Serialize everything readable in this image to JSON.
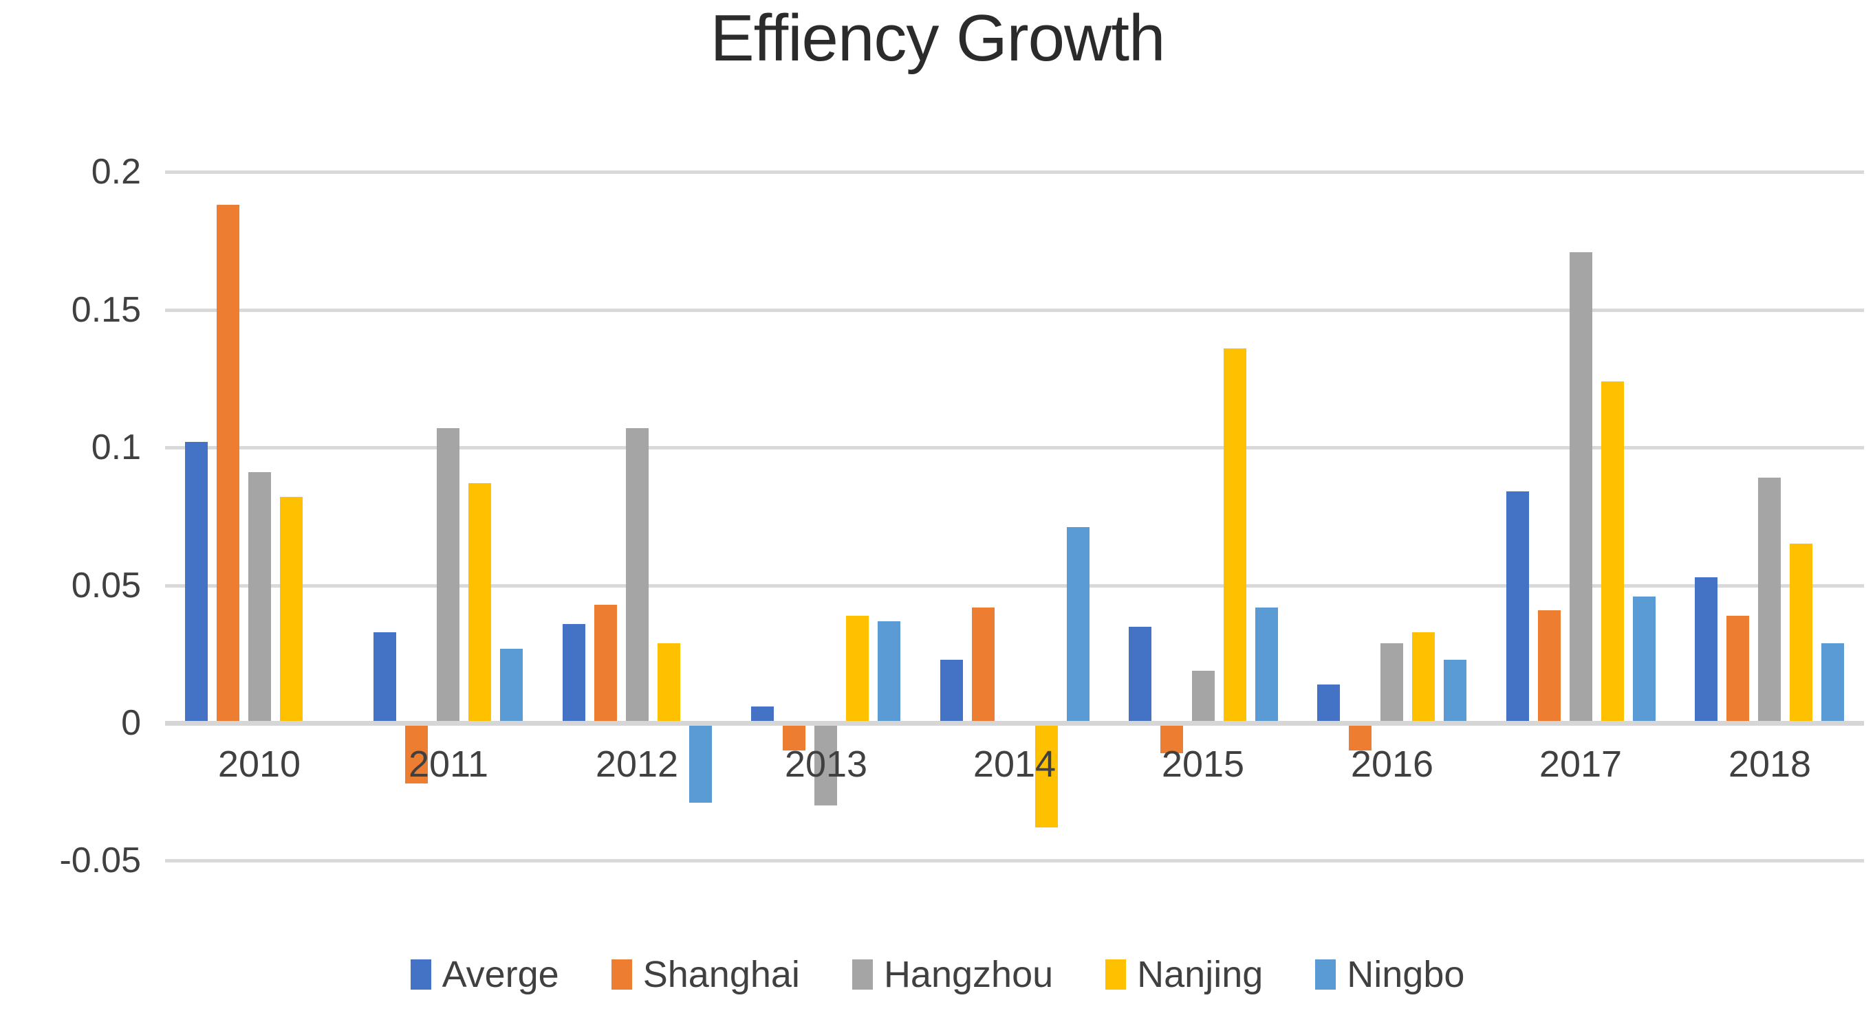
{
  "chart_data": {
    "type": "bar",
    "title": "Effiency Growth",
    "categories": [
      "2010",
      "2011",
      "2012",
      "2013",
      "2014",
      "2015",
      "2016",
      "2017",
      "2018"
    ],
    "series": [
      {
        "name": "Averge",
        "color": "#4472C4",
        "values": [
          0.102,
          0.033,
          0.036,
          0.006,
          0.023,
          0.035,
          0.014,
          0.084,
          0.053
        ]
      },
      {
        "name": "Shanghai",
        "color": "#ED7D31",
        "values": [
          0.188,
          -0.022,
          0.043,
          -0.01,
          0.042,
          -0.011,
          -0.01,
          0.041,
          0.039
        ]
      },
      {
        "name": "Hangzhou",
        "color": "#A5A5A5",
        "values": [
          0.091,
          0.107,
          0.107,
          -0.03,
          0,
          0.019,
          0.029,
          0.171,
          0.089
        ]
      },
      {
        "name": "Nanjing",
        "color": "#FFC000",
        "values": [
          0.082,
          0.087,
          0.029,
          0.039,
          -0.038,
          0.136,
          0.033,
          0.124,
          0.065
        ]
      },
      {
        "name": "Ningbo",
        "color": "#5B9BD5",
        "values": [
          0,
          0.027,
          -0.029,
          0.037,
          0.071,
          0.042,
          0.023,
          0.046,
          0.029
        ]
      }
    ],
    "y_ticks": [
      0.2,
      0.15,
      0.1,
      0.05,
      0,
      -0.05
    ],
    "y_tick_labels": [
      "0.2",
      "0.15",
      "0.1",
      "0.05",
      "0",
      "-0.05"
    ],
    "ylim": [
      -0.05,
      0.2
    ],
    "grid": true,
    "legend_position": "bottom",
    "gridline_color": "#d9d9d9",
    "text_color": "#404040"
  }
}
